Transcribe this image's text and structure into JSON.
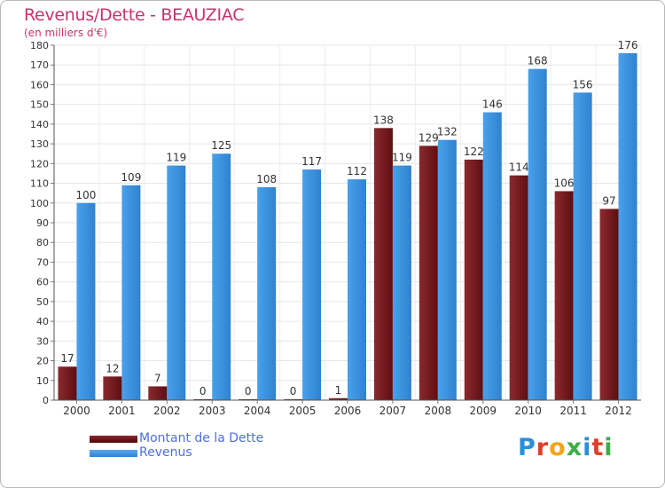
{
  "title": "Revenus/Dette - BEAUZIAC",
  "subtitle": "(en milliers d'€)",
  "legend": {
    "items": [
      {
        "label": "Montant de la Dette",
        "color": "#6b0d10"
      },
      {
        "label": "Revenus",
        "color": "#3a8fdc"
      }
    ]
  },
  "logo": {
    "text": "Proxiti",
    "colors": [
      "#2a8fd6",
      "#e23d2a",
      "#f2a51a",
      "#3cae48",
      "#2a8fd6",
      "#e23d2a",
      "#3cae48"
    ]
  },
  "chart_data": {
    "type": "bar",
    "categories": [
      "2000",
      "2001",
      "2002",
      "2003",
      "2004",
      "2005",
      "2006",
      "2007",
      "2008",
      "2009",
      "2010",
      "2011",
      "2012"
    ],
    "series": [
      {
        "name": "Montant de la Dette",
        "color": "#7a1e22",
        "values": [
          17,
          12,
          7,
          0,
          0,
          0,
          1,
          138,
          129,
          122,
          114,
          106,
          97
        ]
      },
      {
        "name": "Revenus",
        "color": "#3a8fdc",
        "values": [
          100,
          109,
          119,
          125,
          108,
          117,
          112,
          119,
          132,
          146,
          168,
          156,
          176
        ]
      }
    ],
    "yticks": [
      "0",
      "10",
      "20",
      "30",
      "40",
      "50",
      "60",
      "70",
      "80",
      "90",
      "100",
      "110",
      "120",
      "130",
      "140",
      "150",
      "160",
      "170",
      "180"
    ],
    "ylim": [
      0,
      180
    ],
    "grid": true,
    "legend_position": "bottom-left"
  }
}
